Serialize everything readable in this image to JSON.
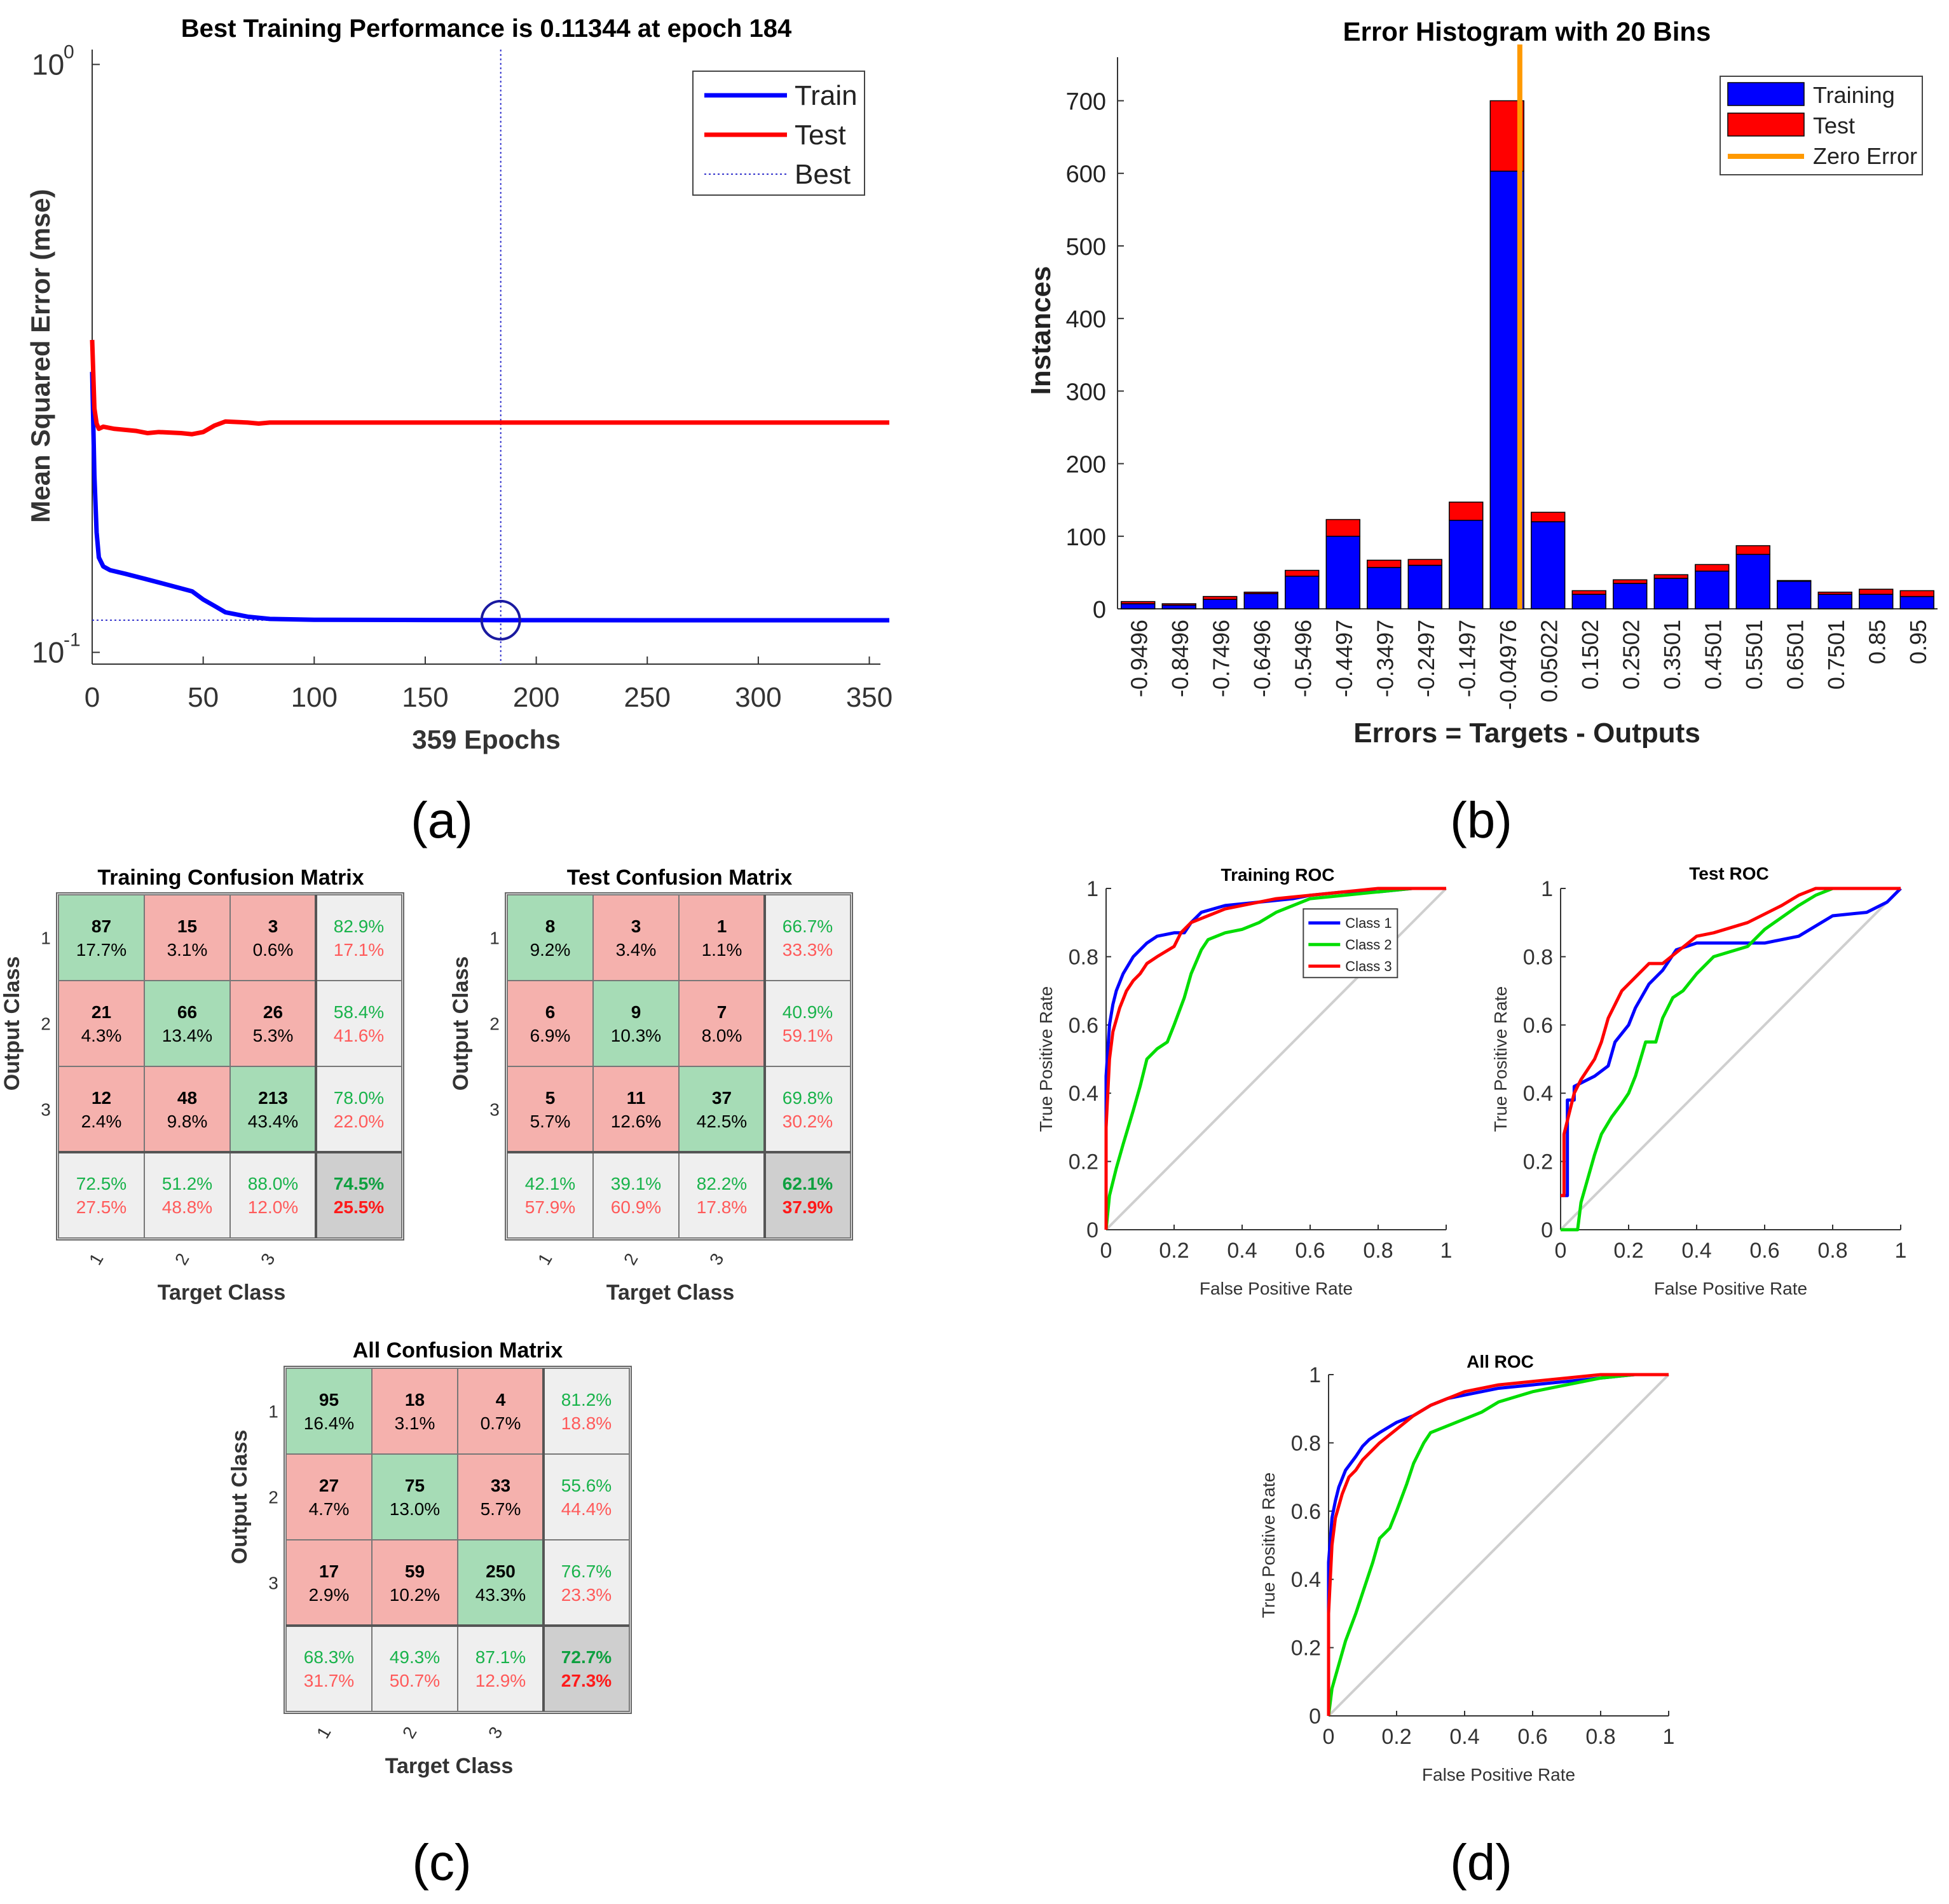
{
  "panel_labels": [
    "(a)",
    "(b)",
    "(c)",
    "(d)"
  ],
  "chart_data": [
    {
      "type": "line",
      "id": "perf",
      "title": "Best Training Performance is 0.11344 at epoch 184",
      "xlabel": "359 Epochs",
      "ylabel": "Mean Squared Error  (mse)",
      "yscale": "log",
      "xlim": [
        0,
        355
      ],
      "xticks": [
        "0",
        "50",
        "100",
        "150",
        "200",
        "250",
        "300",
        "350"
      ],
      "yticks": [
        "10",
        "10"
      ],
      "ytick_exp": [
        "0",
        "-1"
      ],
      "legend": [
        "Train",
        "Test",
        "Best"
      ],
      "best_epoch": 184,
      "best_value": 0.11344,
      "series": [
        {
          "name": "Train",
          "color": "#0000ff",
          "x": [
            0,
            1,
            2,
            3,
            5,
            8,
            15,
            25,
            35,
            45,
            50,
            55,
            60,
            70,
            80,
            100,
            150,
            184,
            250,
            359
          ],
          "y": [
            0.3,
            0.2,
            0.16,
            0.145,
            0.14,
            0.138,
            0.136,
            0.133,
            0.13,
            0.127,
            0.123,
            0.12,
            0.117,
            0.115,
            0.114,
            0.1136,
            0.1135,
            0.11344,
            0.1134,
            0.1134
          ]
        },
        {
          "name": "Test",
          "color": "#ff0000",
          "x": [
            0,
            1,
            2,
            3,
            5,
            10,
            20,
            25,
            30,
            40,
            45,
            50,
            55,
            60,
            70,
            75,
            80,
            100,
            200,
            359
          ],
          "y": [
            0.34,
            0.26,
            0.245,
            0.24,
            0.242,
            0.24,
            0.238,
            0.236,
            0.237,
            0.236,
            0.235,
            0.237,
            0.243,
            0.247,
            0.246,
            0.245,
            0.246,
            0.246,
            0.246,
            0.246
          ]
        }
      ]
    },
    {
      "type": "bar",
      "id": "hist",
      "title": "Error Histogram with 20 Bins",
      "xlabel": "Errors = Targets - Outputs",
      "ylabel": "Instances",
      "ylim": [
        0,
        760
      ],
      "yticks": [
        0,
        100,
        200,
        300,
        400,
        500,
        600,
        700
      ],
      "categories": [
        "-0.9496",
        "-0.8496",
        "-0.7496",
        "-0.6496",
        "-0.5496",
        "-0.4497",
        "-0.3497",
        "-0.2497",
        "-0.1497",
        "-0.04976",
        "0.05022",
        "0.1502",
        "0.2502",
        "0.3501",
        "0.4501",
        "0.5501",
        "0.6501",
        "0.7501",
        "0.85",
        "0.95"
      ],
      "series": [
        {
          "name": "Training",
          "color": "#0000ff",
          "values": [
            7,
            5,
            13,
            21,
            45,
            100,
            57,
            60,
            122,
            603,
            120,
            20,
            35,
            42,
            52,
            75,
            38,
            20,
            20,
            17
          ]
        },
        {
          "name": "Test",
          "color": "#ff0000",
          "values": [
            3,
            2,
            4,
            2,
            8,
            23,
            10,
            8,
            25,
            97,
            13,
            5,
            5,
            5,
            9,
            12,
            1,
            3,
            7,
            8
          ]
        }
      ],
      "zero_error_label": "Zero Error",
      "zero_error_color": "#ff9900",
      "zero_error_at": "-0.04976"
    },
    {
      "type": "table",
      "id": "cm_train",
      "title": "Training Confusion Matrix",
      "xlabel": "Target Class",
      "ylabel": "Output Class",
      "classes": [
        "1",
        "2",
        "3"
      ],
      "cells": [
        [
          [
            "87",
            "17.7%"
          ],
          [
            "15",
            "3.1%"
          ],
          [
            "3",
            "0.6%"
          ]
        ],
        [
          [
            "21",
            "4.3%"
          ],
          [
            "66",
            "13.4%"
          ],
          [
            "26",
            "5.3%"
          ]
        ],
        [
          [
            "12",
            "2.4%"
          ],
          [
            "48",
            "9.8%"
          ],
          [
            "213",
            "43.4%"
          ]
        ]
      ],
      "row_summary": [
        [
          "82.9%",
          "17.1%"
        ],
        [
          "58.4%",
          "41.6%"
        ],
        [
          "78.0%",
          "22.0%"
        ]
      ],
      "col_summary": [
        [
          "72.5%",
          "27.5%"
        ],
        [
          "51.2%",
          "48.8%"
        ],
        [
          "88.0%",
          "12.0%"
        ]
      ],
      "overall": [
        "74.5%",
        "25.5%"
      ]
    },
    {
      "type": "table",
      "id": "cm_test",
      "title": "Test Confusion Matrix",
      "xlabel": "Target Class",
      "ylabel": "Output Class",
      "classes": [
        "1",
        "2",
        "3"
      ],
      "cells": [
        [
          [
            "8",
            "9.2%"
          ],
          [
            "3",
            "3.4%"
          ],
          [
            "1",
            "1.1%"
          ]
        ],
        [
          [
            "6",
            "6.9%"
          ],
          [
            "9",
            "10.3%"
          ],
          [
            "7",
            "8.0%"
          ]
        ],
        [
          [
            "5",
            "5.7%"
          ],
          [
            "11",
            "12.6%"
          ],
          [
            "37",
            "42.5%"
          ]
        ]
      ],
      "row_summary": [
        [
          "66.7%",
          "33.3%"
        ],
        [
          "40.9%",
          "59.1%"
        ],
        [
          "69.8%",
          "30.2%"
        ]
      ],
      "col_summary": [
        [
          "42.1%",
          "57.9%"
        ],
        [
          "39.1%",
          "60.9%"
        ],
        [
          "82.2%",
          "17.8%"
        ]
      ],
      "overall": [
        "62.1%",
        "37.9%"
      ]
    },
    {
      "type": "table",
      "id": "cm_all",
      "title": "All Confusion Matrix",
      "xlabel": "Target Class",
      "ylabel": "Output Class",
      "classes": [
        "1",
        "2",
        "3"
      ],
      "cells": [
        [
          [
            "95",
            "16.4%"
          ],
          [
            "18",
            "3.1%"
          ],
          [
            "4",
            "0.7%"
          ]
        ],
        [
          [
            "27",
            "4.7%"
          ],
          [
            "75",
            "13.0%"
          ],
          [
            "33",
            "5.7%"
          ]
        ],
        [
          [
            "17",
            "2.9%"
          ],
          [
            "59",
            "10.2%"
          ],
          [
            "250",
            "43.3%"
          ]
        ]
      ],
      "row_summary": [
        [
          "81.2%",
          "18.8%"
        ],
        [
          "55.6%",
          "44.4%"
        ],
        [
          "76.7%",
          "23.3%"
        ]
      ],
      "col_summary": [
        [
          "68.3%",
          "31.7%"
        ],
        [
          "49.3%",
          "50.7%"
        ],
        [
          "87.1%",
          "12.9%"
        ]
      ],
      "overall": [
        "72.7%",
        "27.3%"
      ]
    },
    {
      "type": "line",
      "id": "roc_train",
      "title": "Training ROC",
      "xlabel": "False Positive Rate",
      "ylabel": "True Positive Rate",
      "xlim": [
        0,
        1
      ],
      "ylim": [
        0,
        1
      ],
      "ticks": [
        "0",
        "0.2",
        "0.4",
        "0.6",
        "0.8",
        "1"
      ],
      "legend": [
        "Class 1",
        "Class 2",
        "Class 3"
      ],
      "series": [
        {
          "name": "Class 1",
          "color": "#0000ff",
          "x": [
            0,
            0,
            0.01,
            0.02,
            0.03,
            0.05,
            0.08,
            0.12,
            0.15,
            0.2,
            0.23,
            0.25,
            0.28,
            0.35,
            0.45,
            0.55,
            0.6,
            0.7,
            0.8,
            0.9,
            1
          ],
          "y": [
            0,
            0.45,
            0.6,
            0.66,
            0.7,
            0.75,
            0.8,
            0.84,
            0.86,
            0.87,
            0.87,
            0.9,
            0.93,
            0.95,
            0.96,
            0.97,
            0.98,
            0.99,
            0.99,
            1,
            1
          ]
        },
        {
          "name": "Class 2",
          "color": "#00dd00",
          "x": [
            0,
            0.01,
            0.03,
            0.05,
            0.08,
            0.1,
            0.12,
            0.15,
            0.18,
            0.2,
            0.23,
            0.25,
            0.28,
            0.3,
            0.35,
            0.4,
            0.45,
            0.5,
            0.55,
            0.6,
            0.7,
            0.8,
            0.9,
            1
          ],
          "y": [
            0,
            0.1,
            0.18,
            0.25,
            0.35,
            0.42,
            0.5,
            0.53,
            0.55,
            0.6,
            0.68,
            0.75,
            0.82,
            0.85,
            0.87,
            0.88,
            0.9,
            0.93,
            0.95,
            0.97,
            0.98,
            0.99,
            1,
            1
          ]
        },
        {
          "name": "Class 3",
          "color": "#ff0000",
          "x": [
            0,
            0,
            0.01,
            0.02,
            0.04,
            0.06,
            0.08,
            0.1,
            0.12,
            0.15,
            0.2,
            0.22,
            0.25,
            0.3,
            0.35,
            0.4,
            0.5,
            0.6,
            0.7,
            0.8,
            0.9,
            1
          ],
          "y": [
            0,
            0.3,
            0.5,
            0.58,
            0.65,
            0.7,
            0.73,
            0.75,
            0.78,
            0.8,
            0.83,
            0.87,
            0.9,
            0.92,
            0.94,
            0.95,
            0.97,
            0.98,
            0.99,
            1,
            1,
            1
          ]
        }
      ]
    },
    {
      "type": "line",
      "id": "roc_test",
      "title": "Test ROC",
      "xlabel": "False Positive Rate",
      "ylabel": "True Positive Rate",
      "xlim": [
        0,
        1
      ],
      "ylim": [
        0,
        1
      ],
      "ticks": [
        "0",
        "0.2",
        "0.4",
        "0.6",
        "0.8",
        "1"
      ],
      "series": [
        {
          "name": "Class 1",
          "color": "#0000ff",
          "x": [
            0,
            0.02,
            0.02,
            0.04,
            0.04,
            0.08,
            0.1,
            0.14,
            0.16,
            0.2,
            0.22,
            0.26,
            0.3,
            0.34,
            0.4,
            0.5,
            0.6,
            0.7,
            0.8,
            0.9,
            0.96,
            1
          ],
          "y": [
            0.1,
            0.1,
            0.38,
            0.38,
            0.42,
            0.44,
            0.45,
            0.48,
            0.55,
            0.6,
            0.65,
            0.72,
            0.76,
            0.82,
            0.84,
            0.84,
            0.84,
            0.86,
            0.92,
            0.93,
            0.96,
            1
          ]
        },
        {
          "name": "Class 2",
          "color": "#00dd00",
          "x": [
            0,
            0.05,
            0.06,
            0.08,
            0.1,
            0.12,
            0.15,
            0.18,
            0.2,
            0.22,
            0.25,
            0.28,
            0.3,
            0.33,
            0.36,
            0.4,
            0.45,
            0.55,
            0.6,
            0.7,
            0.75,
            0.8,
            1
          ],
          "y": [
            0,
            0,
            0.08,
            0.15,
            0.22,
            0.28,
            0.33,
            0.37,
            0.4,
            0.45,
            0.55,
            0.55,
            0.62,
            0.68,
            0.7,
            0.75,
            0.8,
            0.83,
            0.88,
            0.95,
            0.98,
            1,
            1
          ]
        },
        {
          "name": "Class 3",
          "color": "#ff0000",
          "x": [
            0,
            0.01,
            0.01,
            0.04,
            0.06,
            0.08,
            0.1,
            0.12,
            0.14,
            0.16,
            0.18,
            0.22,
            0.26,
            0.3,
            0.35,
            0.4,
            0.45,
            0.55,
            0.65,
            0.7,
            0.75,
            0.85,
            1
          ],
          "y": [
            0.1,
            0.1,
            0.28,
            0.4,
            0.44,
            0.47,
            0.5,
            0.55,
            0.62,
            0.66,
            0.7,
            0.74,
            0.78,
            0.78,
            0.82,
            0.86,
            0.87,
            0.9,
            0.95,
            0.98,
            1,
            1,
            1
          ]
        }
      ]
    },
    {
      "type": "line",
      "id": "roc_all",
      "title": "All ROC",
      "xlabel": "False Positive Rate",
      "ylabel": "True Positive Rate",
      "xlim": [
        0,
        1
      ],
      "ylim": [
        0,
        1
      ],
      "ticks": [
        "0",
        "0.2",
        "0.4",
        "0.6",
        "0.8",
        "1"
      ],
      "series": [
        {
          "name": "Class 1",
          "color": "#0000ff",
          "x": [
            0,
            0,
            0.01,
            0.02,
            0.03,
            0.05,
            0.08,
            0.1,
            0.12,
            0.15,
            0.2,
            0.25,
            0.3,
            0.35,
            0.4,
            0.5,
            0.6,
            0.7,
            0.8,
            0.9,
            1
          ],
          "y": [
            0,
            0.45,
            0.58,
            0.63,
            0.67,
            0.72,
            0.76,
            0.79,
            0.81,
            0.83,
            0.86,
            0.88,
            0.91,
            0.93,
            0.94,
            0.96,
            0.97,
            0.98,
            0.99,
            1,
            1
          ]
        },
        {
          "name": "Class 2",
          "color": "#00dd00",
          "x": [
            0,
            0.01,
            0.03,
            0.05,
            0.08,
            0.1,
            0.13,
            0.15,
            0.18,
            0.2,
            0.23,
            0.25,
            0.28,
            0.3,
            0.35,
            0.4,
            0.45,
            0.5,
            0.6,
            0.7,
            0.8,
            0.9,
            1
          ],
          "y": [
            0,
            0.08,
            0.15,
            0.22,
            0.3,
            0.36,
            0.45,
            0.52,
            0.55,
            0.6,
            0.68,
            0.74,
            0.8,
            0.83,
            0.85,
            0.87,
            0.89,
            0.92,
            0.95,
            0.97,
            0.99,
            1,
            1
          ]
        },
        {
          "name": "Class 3",
          "color": "#ff0000",
          "x": [
            0,
            0,
            0.01,
            0.02,
            0.04,
            0.06,
            0.08,
            0.1,
            0.12,
            0.15,
            0.2,
            0.25,
            0.3,
            0.35,
            0.4,
            0.5,
            0.6,
            0.7,
            0.8,
            0.9,
            1
          ],
          "y": [
            0,
            0.3,
            0.5,
            0.58,
            0.65,
            0.7,
            0.72,
            0.75,
            0.77,
            0.8,
            0.84,
            0.88,
            0.91,
            0.93,
            0.95,
            0.97,
            0.98,
            0.99,
            1,
            1,
            1
          ]
        }
      ]
    }
  ]
}
